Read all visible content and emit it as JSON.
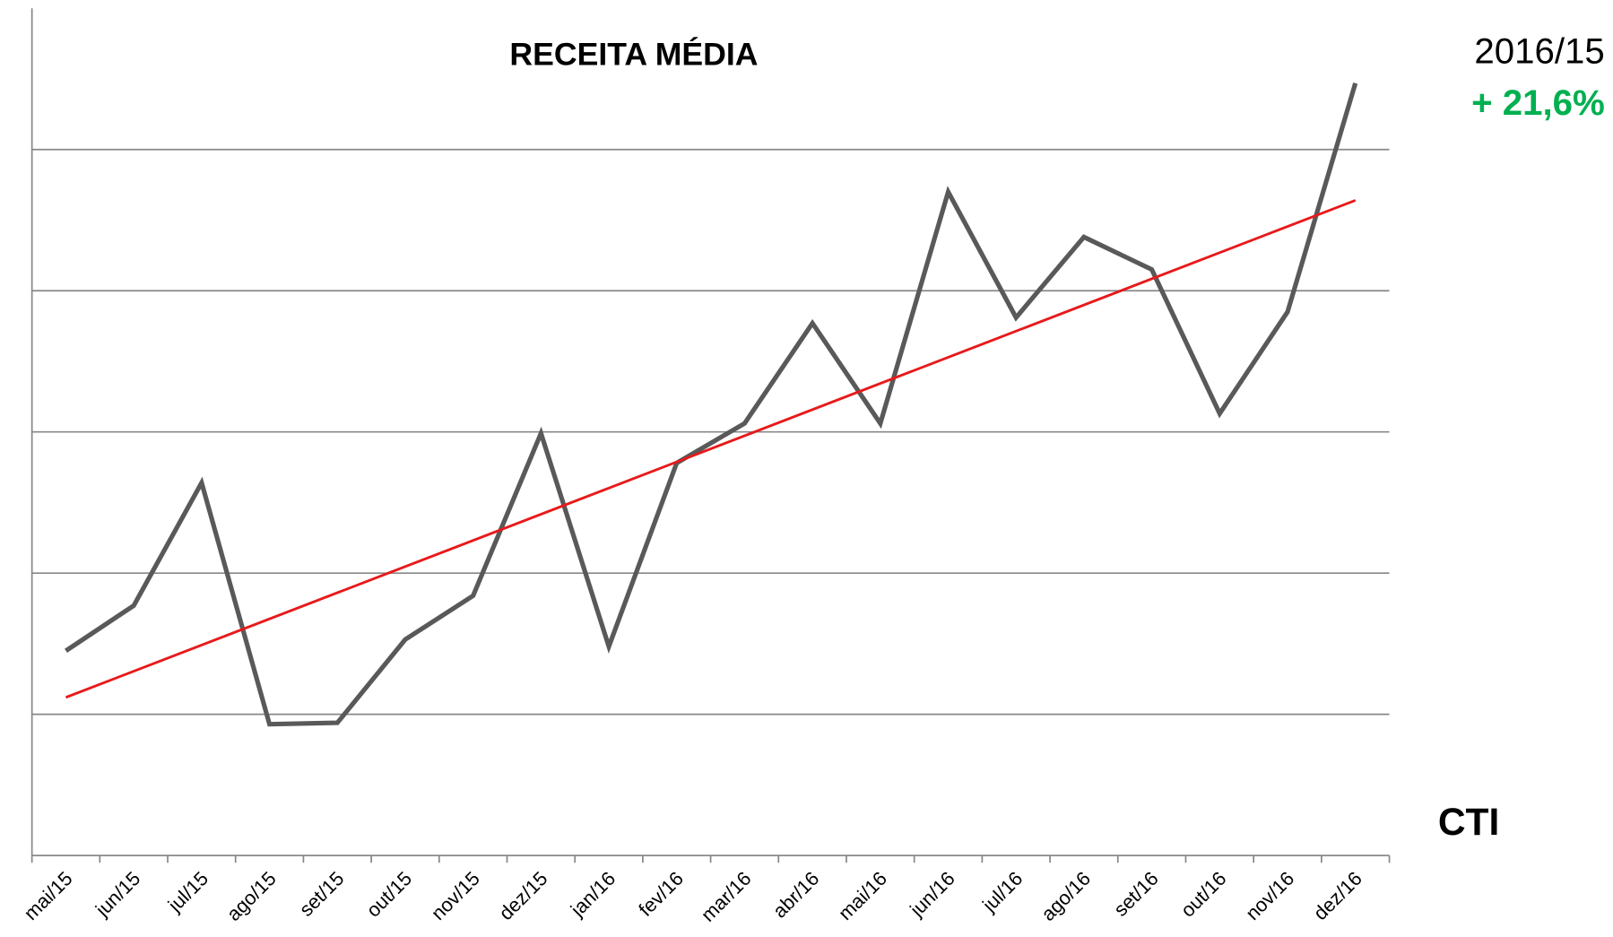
{
  "chart_data": {
    "type": "line",
    "title": "RECEITA MÉDIA",
    "categories": [
      "mai/15",
      "jun/15",
      "jul/15",
      "ago/15",
      "set/15",
      "out/15",
      "nov/15",
      "dez/15",
      "jan/16",
      "fev/16",
      "mar/16",
      "abr/16",
      "mai/16",
      "jun/16",
      "jul/16",
      "ago/16",
      "set/16",
      "out/16",
      "nov/16",
      "dez/16"
    ],
    "values": [
      1.45,
      1.77,
      2.64,
      0.93,
      0.94,
      1.53,
      1.84,
      2.99,
      1.48,
      2.78,
      3.06,
      3.77,
      3.06,
      4.7,
      3.81,
      4.38,
      4.15,
      3.13,
      3.85,
      5.47
    ],
    "color": "#595959",
    "trendline": {
      "color": "#e8191a",
      "values": [
        1.12,
        4.64
      ]
    },
    "ylim": [
      0,
      6
    ],
    "yticks": [
      1,
      2,
      3,
      4,
      5
    ],
    "grid": true,
    "annotations": {
      "period": "2016/15",
      "change": "+ 21,6%",
      "change_color": "#00b050",
      "source": "CTI"
    }
  }
}
